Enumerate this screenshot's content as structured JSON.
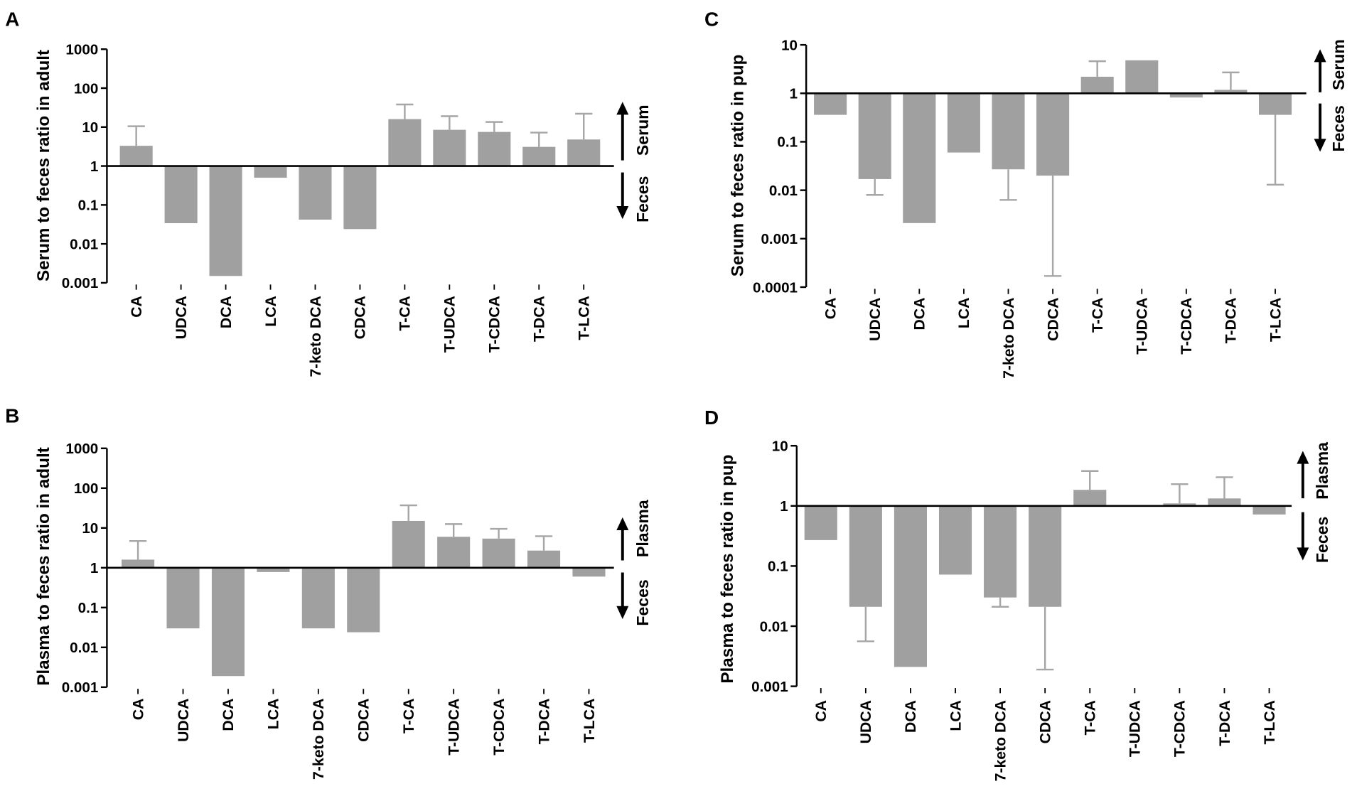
{
  "style": {
    "bar_color": "#a0a0a0",
    "error_color": "#a6a6a6",
    "axis_color": "#000000",
    "background": "#ffffff"
  },
  "chart_data": [
    {
      "panel": "A",
      "type": "bar",
      "title": "",
      "xlabel": "",
      "ylabel": "Serum to feces ratio in adult",
      "yscale": "log",
      "ylim": [
        0.001,
        1000
      ],
      "baseline": 1,
      "grid": false,
      "yticks": [
        1000,
        100,
        10,
        1,
        0.1,
        0.01,
        0.001
      ],
      "ytick_labels": [
        "1000",
        "100",
        "10",
        "1",
        "0.1",
        "0.01",
        "0.001"
      ],
      "categories": [
        "CA",
        "UDCA",
        "DCA",
        "LCA",
        "7-keto DCA",
        "CDCA",
        "T-CA",
        "T-UDCA",
        "T-CDCA",
        "T-DCA",
        "T-LCA"
      ],
      "values": [
        3.3,
        0.034,
        0.0015,
        0.5,
        0.042,
        0.024,
        16,
        8.5,
        7.5,
        3.1,
        4.8
      ],
      "error_ends": [
        10.5,
        null,
        null,
        null,
        null,
        null,
        38,
        19,
        13.5,
        7.2,
        22
      ],
      "annotation_up": "Serum",
      "annotation_down": "Feces"
    },
    {
      "panel": "B",
      "type": "bar",
      "title": "",
      "xlabel": "",
      "ylabel": "Plasma to feces ratio in adult",
      "yscale": "log",
      "ylim": [
        0.001,
        1000
      ],
      "baseline": 1,
      "grid": false,
      "yticks": [
        1000,
        100,
        10,
        1,
        0.1,
        0.01,
        0.001
      ],
      "ytick_labels": [
        "1000",
        "100",
        "10",
        "1",
        "0.1",
        "0.01",
        "0.001"
      ],
      "categories": [
        "CA",
        "UDCA",
        "DCA",
        "LCA",
        "7-keto DCA",
        "CDCA",
        "T-CA",
        "T-UDCA",
        "T-CDCA",
        "T-DCA",
        "T-LCA"
      ],
      "values": [
        1.6,
        0.03,
        0.0019,
        0.78,
        0.03,
        0.024,
        15,
        6,
        5.4,
        2.7,
        0.6
      ],
      "error_ends": [
        4.7,
        null,
        null,
        null,
        null,
        null,
        37,
        12.5,
        9.5,
        6.2,
        null
      ],
      "annotation_up": "Plasma",
      "annotation_down": "Feces"
    },
    {
      "panel": "C",
      "type": "bar",
      "title": "",
      "xlabel": "",
      "ylabel": "Serum to feces ratio in pup",
      "yscale": "log",
      "ylim": [
        0.0001,
        10
      ],
      "baseline": 1,
      "grid": false,
      "yticks": [
        10,
        1,
        0.1,
        0.01,
        0.001,
        0.0001
      ],
      "ytick_labels": [
        "10",
        "1",
        "0.1",
        "0.01",
        "0.001",
        "0.0001"
      ],
      "categories": [
        "CA",
        "UDCA",
        "DCA",
        "LCA",
        "7-keto DCA",
        "CDCA",
        "T-CA",
        "T-UDCA",
        "T-CDCA",
        "T-DCA",
        "T-LCA"
      ],
      "values": [
        0.36,
        0.017,
        0.0021,
        0.06,
        0.027,
        0.02,
        2.2,
        4.8,
        0.82,
        1.18,
        0.36
      ],
      "error_ends": [
        null,
        0.008,
        null,
        null,
        0.0063,
        0.00017,
        4.6,
        null,
        null,
        2.7,
        0.013
      ],
      "annotation_up": "Serum",
      "annotation_down": "Feces"
    },
    {
      "panel": "D",
      "type": "bar",
      "title": "",
      "xlabel": "",
      "ylabel": "Plasma to feces ratio in pup",
      "yscale": "log",
      "ylim": [
        0.001,
        10
      ],
      "baseline": 1,
      "grid": false,
      "yticks": [
        10,
        1,
        0.1,
        0.01,
        0.001
      ],
      "ytick_labels": [
        "10",
        "1",
        "0.1",
        "0.01",
        "0.001"
      ],
      "categories": [
        "CA",
        "UDCA",
        "DCA",
        "LCA",
        "7-keto DCA",
        "CDCA",
        "T-CA",
        "T-UDCA",
        "T-CDCA",
        "T-DCA",
        "T-LCA"
      ],
      "values": [
        0.27,
        0.021,
        0.0021,
        0.072,
        0.03,
        0.021,
        1.85,
        null,
        1.1,
        1.33,
        0.72
      ],
      "error_ends": [
        null,
        0.0056,
        null,
        null,
        0.021,
        0.0019,
        3.8,
        null,
        2.3,
        3.0,
        null
      ],
      "annotation_up": "Plasma",
      "annotation_down": "Feces"
    }
  ]
}
